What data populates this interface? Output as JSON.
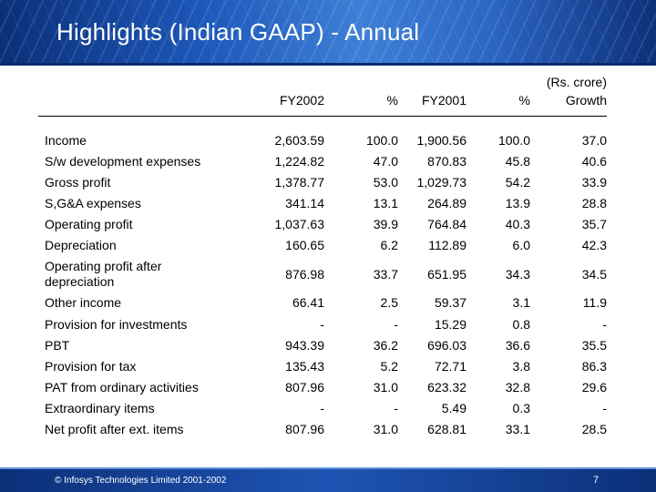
{
  "slide": {
    "title": "Highlights (Indian GAAP) - Annual",
    "unit_note": "(Rs. crore)",
    "footer_copyright": "© Infosys Technologies Limited 2001-2002",
    "page_number": "7"
  },
  "table": {
    "headers": {
      "fy2002": "FY2002",
      "pct1": "%",
      "fy2001": "FY2001",
      "pct2": "%",
      "growth": "Growth"
    },
    "rows": [
      {
        "label": "Income",
        "fy2002": "2,603.59",
        "pct1": "100.0",
        "fy2001": "1,900.56",
        "pct2": "100.0",
        "growth": "37.0"
      },
      {
        "label": "S/w development expenses",
        "fy2002": "1,224.82",
        "pct1": "47.0",
        "fy2001": "870.83",
        "pct2": "45.8",
        "growth": "40.6"
      },
      {
        "label": "Gross profit",
        "fy2002": "1,378.77",
        "pct1": "53.0",
        "fy2001": "1,029.73",
        "pct2": "54.2",
        "growth": "33.9"
      },
      {
        "label": "S,G&A expenses",
        "fy2002": "341.14",
        "pct1": "13.1",
        "fy2001": "264.89",
        "pct2": "13.9",
        "growth": "28.8"
      },
      {
        "label": "Operating profit",
        "fy2002": "1,037.63",
        "pct1": "39.9",
        "fy2001": "764.84",
        "pct2": "40.3",
        "growth": "35.7"
      },
      {
        "label": "Depreciation",
        "fy2002": "160.65",
        "pct1": "6.2",
        "fy2001": "112.89",
        "pct2": "6.0",
        "growth": "42.3"
      },
      {
        "label": "Operating profit after depreciation",
        "fy2002": "876.98",
        "pct1": "33.7",
        "fy2001": "651.95",
        "pct2": "34.3",
        "growth": "34.5"
      },
      {
        "label": "Other income",
        "fy2002": "66.41",
        "pct1": "2.5",
        "fy2001": "59.37",
        "pct2": "3.1",
        "growth": "11.9"
      },
      {
        "label": "Provision for investments",
        "fy2002": "-",
        "pct1": "-",
        "fy2001": "15.29",
        "pct2": "0.8",
        "growth": "-"
      },
      {
        "label": "PBT",
        "fy2002": "943.39",
        "pct1": "36.2",
        "fy2001": "696.03",
        "pct2": "36.6",
        "growth": "35.5"
      },
      {
        "label": "Provision for tax",
        "fy2002": "135.43",
        "pct1": "5.2",
        "fy2001": "72.71",
        "pct2": "3.8",
        "growth": "86.3"
      },
      {
        "label": "PAT from ordinary activities",
        "fy2002": "807.96",
        "pct1": "31.0",
        "fy2001": "623.32",
        "pct2": "32.8",
        "growth": "29.6"
      },
      {
        "label": "Extraordinary items",
        "fy2002": "-",
        "pct1": "-",
        "fy2001": "5.49",
        "pct2": "0.3",
        "growth": "-"
      },
      {
        "label": "Net profit after ext. items",
        "fy2002": "807.96",
        "pct1": "31.0",
        "fy2001": "628.81",
        "pct2": "33.1",
        "growth": "28.5"
      }
    ]
  }
}
